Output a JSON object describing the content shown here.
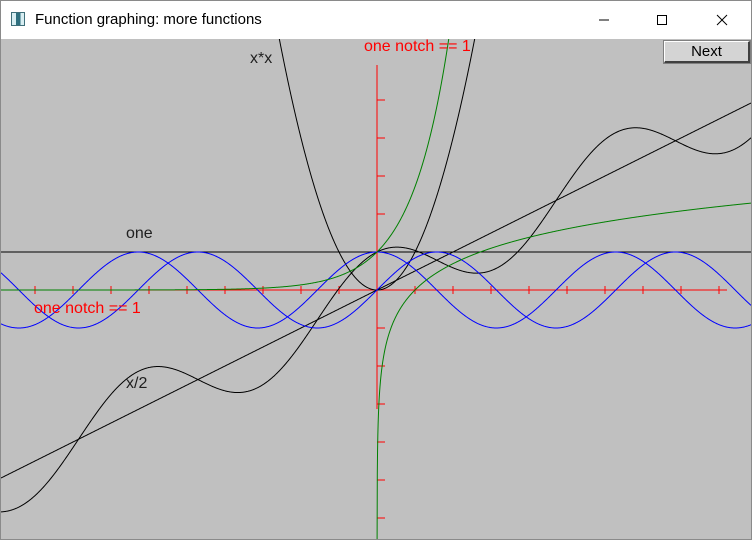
{
  "window": {
    "title": "Function graphing: more functions"
  },
  "controls": {
    "next_label": "Next"
  },
  "labels": {
    "y_axis": "one notch == 1",
    "x_axis": "one notch == 1",
    "func_square": "x*x",
    "func_one": "one",
    "func_half": "x/2"
  },
  "icons": {
    "app": "app-icon",
    "minimize": "minimize-icon",
    "maximize": "maximize-icon",
    "close": "close-icon"
  },
  "colors": {
    "background": "#c0c0c0",
    "axis": "#ff0000",
    "black_curves": "#000000",
    "blue_curves": "#0000ff",
    "green_curves": "#008000"
  },
  "graph": {
    "axis_notches": 9,
    "notch_value": 1
  }
}
